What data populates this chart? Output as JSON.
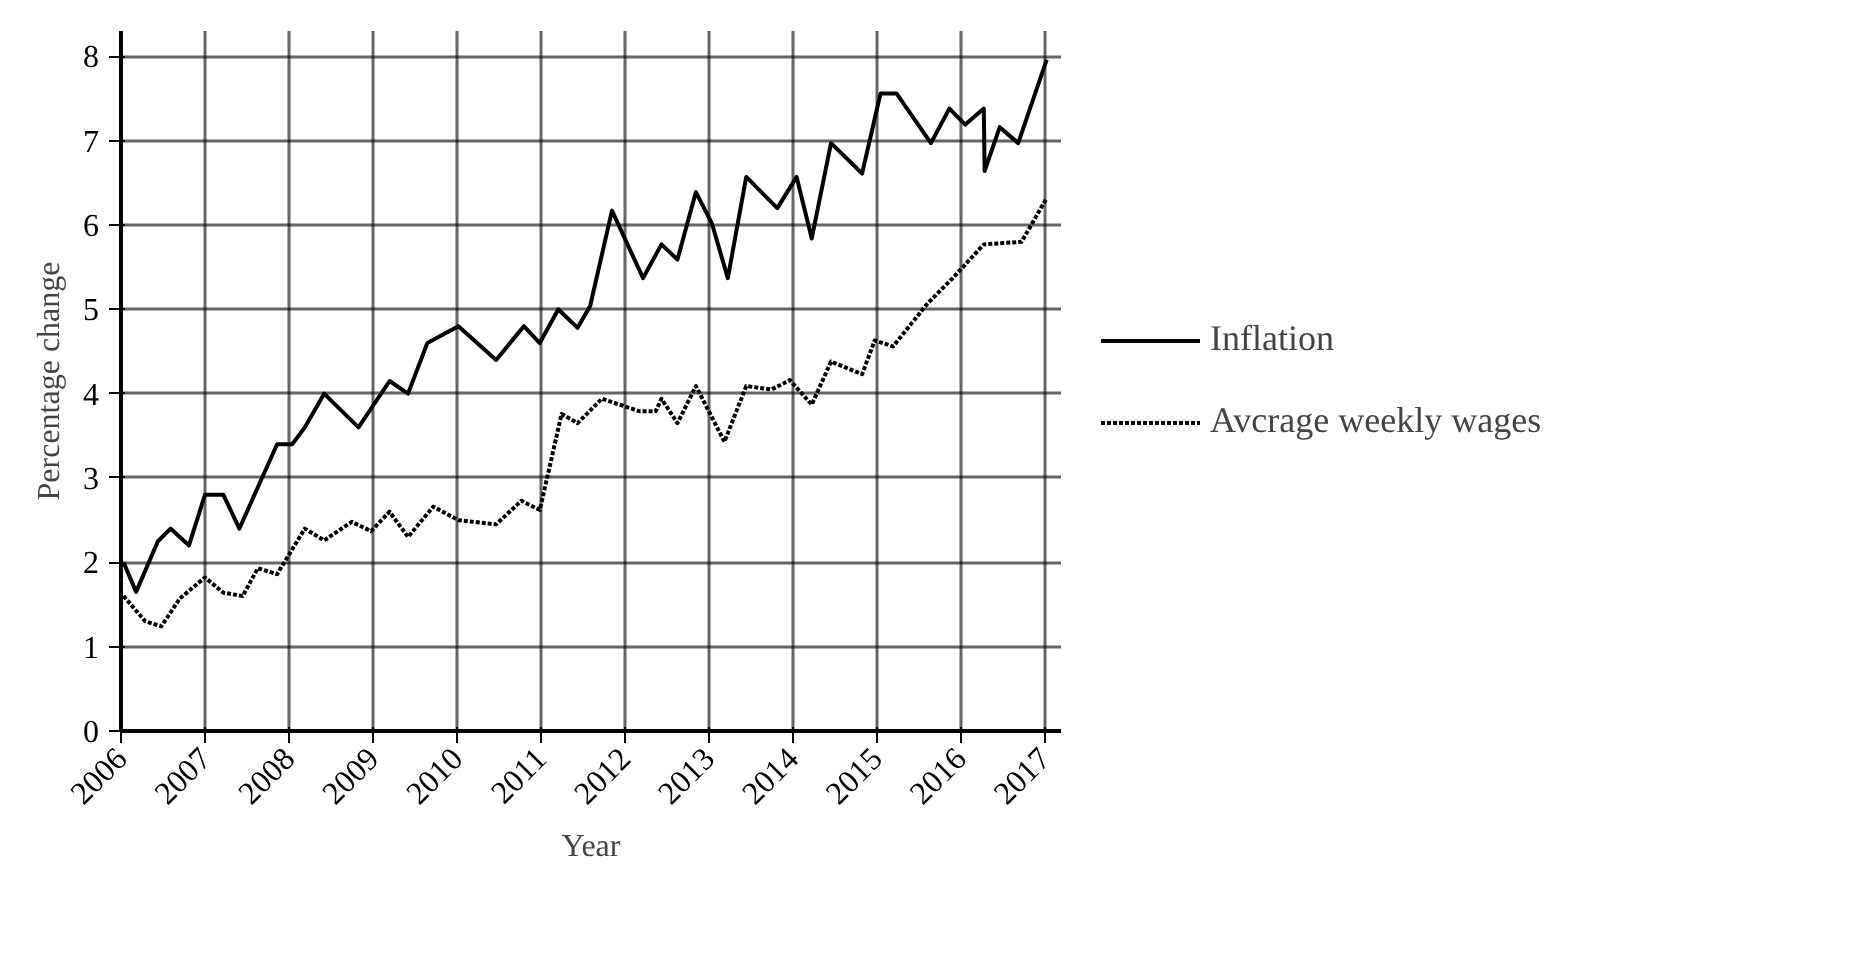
{
  "chart_data": {
    "type": "line",
    "xlabel": "Year",
    "ylabel": "Percentage change",
    "xlim": [
      2006,
      2017.2
    ],
    "xticks": [
      2006,
      2007,
      2008,
      2009,
      2010,
      2011,
      2012,
      2013,
      2014,
      2015,
      2016,
      2017
    ],
    "ylim": [
      0,
      8.3
    ],
    "yticks": [
      0,
      1,
      2,
      3,
      4,
      5,
      6,
      7,
      8
    ],
    "grid": true,
    "legend": "right",
    "marker": "none",
    "series": [
      {
        "name": "Inflation",
        "color": "#000000",
        "line_style": "solid",
        "x": [
          2006.03,
          2006.18,
          2006.44,
          2006.59,
          2006.81,
          2007.0,
          2007.22,
          2007.41,
          2007.86,
          2008.04,
          2008.19,
          2008.42,
          2008.83,
          2009.2,
          2009.42,
          2009.65,
          2010.02,
          2010.47,
          2010.8,
          2010.99,
          2011.21,
          2011.44,
          2011.59,
          2011.85,
          2012.22,
          2012.44,
          2012.63,
          2012.85,
          2013.04,
          2013.23,
          2013.45,
          2013.82,
          2014.05,
          2014.23,
          2014.46,
          2014.83,
          2015.05,
          2015.24,
          2015.65,
          2015.87,
          2016.06,
          2016.28,
          2016.29,
          2016.47,
          2016.69,
          2017.03
        ],
        "values": [
          2.0,
          1.65,
          2.25,
          2.4,
          2.2,
          2.8,
          2.8,
          2.4,
          3.4,
          3.4,
          3.6,
          4.0,
          3.6,
          4.15,
          4.0,
          4.6,
          4.8,
          4.4,
          4.8,
          4.6,
          5.0,
          4.78,
          5.04,
          6.17,
          5.37,
          5.77,
          5.59,
          6.39,
          6.02,
          5.37,
          6.57,
          6.2,
          6.57,
          5.84,
          6.97,
          6.61,
          7.56,
          7.56,
          6.97,
          7.38,
          7.19,
          7.38,
          6.64,
          7.16,
          6.97,
          7.96
        ]
      },
      {
        "name": "Avcrage weekly wages",
        "color": "#000000",
        "line_style": "dotted",
        "x": [
          2006.03,
          2006.29,
          2006.48,
          2006.7,
          2007.0,
          2007.22,
          2007.45,
          2007.63,
          2007.86,
          2008.19,
          2008.42,
          2008.75,
          2008.98,
          2009.2,
          2009.42,
          2009.72,
          2010.02,
          2010.47,
          2010.77,
          2010.99,
          2011.25,
          2011.44,
          2011.73,
          2012.18,
          2012.37,
          2012.44,
          2012.63,
          2012.85,
          2013.19,
          2013.45,
          2013.75,
          2013.97,
          2014.23,
          2014.46,
          2014.83,
          2014.98,
          2015.2,
          2015.61,
          2015.91,
          2016.28,
          2016.73,
          2017.03
        ],
        "values": [
          1.6,
          1.3,
          1.24,
          1.57,
          1.82,
          1.64,
          1.6,
          1.93,
          1.86,
          2.4,
          2.26,
          2.48,
          2.37,
          2.6,
          2.3,
          2.66,
          2.5,
          2.45,
          2.73,
          2.62,
          3.76,
          3.65,
          3.94,
          3.79,
          3.79,
          3.94,
          3.65,
          4.09,
          3.43,
          4.09,
          4.05,
          4.16,
          3.87,
          4.38,
          4.23,
          4.63,
          4.56,
          5.07,
          5.37,
          5.77,
          5.8,
          6.32
        ]
      }
    ]
  }
}
